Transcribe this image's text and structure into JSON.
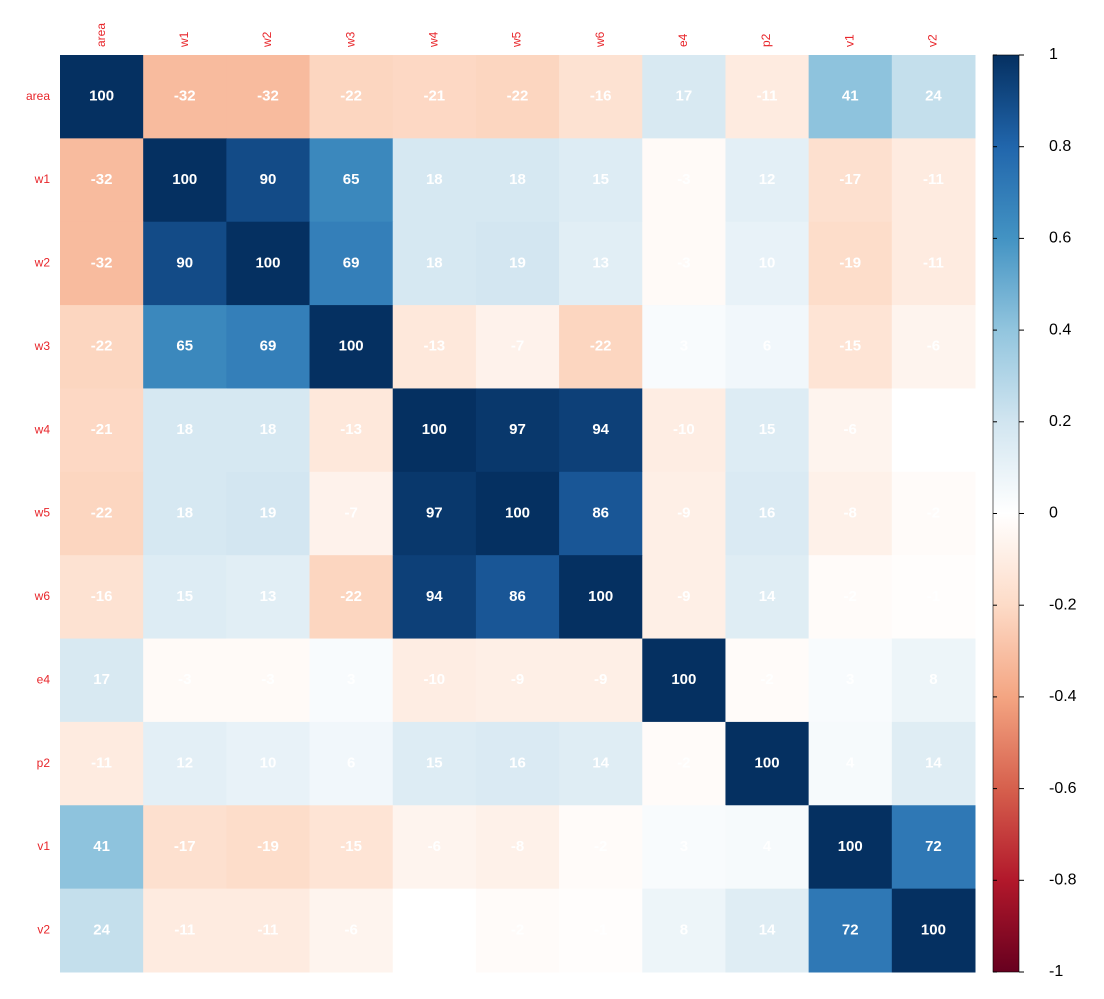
{
  "chart_data": {
    "type": "heatmap",
    "variables": [
      "area",
      "w1",
      "w2",
      "w3",
      "w4",
      "w5",
      "w6",
      "e4",
      "p2",
      "v1",
      "v2"
    ],
    "values": [
      [
        1.0,
        -0.32,
        -0.32,
        -0.22,
        -0.21,
        -0.22,
        -0.16,
        0.17,
        -0.11,
        0.41,
        0.24
      ],
      [
        -0.32,
        1.0,
        0.9,
        0.65,
        0.18,
        0.18,
        0.15,
        -0.03,
        0.12,
        -0.17,
        -0.11
      ],
      [
        -0.32,
        0.9,
        1.0,
        0.69,
        0.18,
        0.19,
        0.13,
        -0.03,
        0.1,
        -0.19,
        -0.11
      ],
      [
        -0.22,
        0.65,
        0.69,
        1.0,
        -0.13,
        -0.07,
        -0.22,
        0.03,
        0.06,
        -0.15,
        -0.06
      ],
      [
        -0.21,
        0.18,
        0.18,
        -0.13,
        1.0,
        0.97,
        0.94,
        -0.1,
        0.15,
        -0.06,
        0
      ],
      [
        -0.22,
        0.18,
        0.19,
        -0.07,
        0.97,
        1.0,
        0.86,
        -0.09,
        0.16,
        -0.08,
        -0.02
      ],
      [
        -0.16,
        0.15,
        0.13,
        -0.22,
        0.94,
        0.86,
        1.0,
        -0.09,
        0.14,
        -0.02,
        -0.01
      ],
      [
        0.17,
        -0.03,
        -0.03,
        0.03,
        -0.1,
        -0.09,
        -0.09,
        1.0,
        -0.02,
        0.03,
        0.08
      ],
      [
        -0.11,
        0.12,
        0.1,
        0.06,
        0.15,
        0.16,
        0.14,
        -0.02,
        1.0,
        0.04,
        0.14
      ],
      [
        0.41,
        -0.17,
        -0.19,
        -0.15,
        -0.06,
        -0.08,
        -0.02,
        0.03,
        0.04,
        1.0,
        0.72
      ],
      [
        0.24,
        -0.11,
        -0.11,
        -0.06,
        0,
        -0.02,
        -0.01,
        0.08,
        0.14,
        0.72,
        1.0
      ]
    ],
    "value_labels": [
      [
        "100",
        "-32",
        "-32",
        "-22",
        "-21",
        "-22",
        "-16",
        "17",
        "-11",
        "41",
        "24"
      ],
      [
        "-32",
        "100",
        "90",
        "65",
        "18",
        "18",
        "15",
        "-3",
        "12",
        "-17",
        "-11"
      ],
      [
        "-32",
        "90",
        "100",
        "69",
        "18",
        "19",
        "13",
        "-3",
        "10",
        "-19",
        "-11"
      ],
      [
        "-22",
        "65",
        "69",
        "100",
        "-13",
        "-7",
        "-22",
        "3",
        "6",
        "-15",
        "-6"
      ],
      [
        "-21",
        "18",
        "18",
        "-13",
        "100",
        "97",
        "94",
        "-10",
        "15",
        "-6",
        "0"
      ],
      [
        "-22",
        "18",
        "19",
        "-7",
        "97",
        "100",
        "86",
        "-9",
        "16",
        "-8",
        "-2"
      ],
      [
        "-16",
        "15",
        "13",
        "-22",
        "94",
        "86",
        "100",
        "-9",
        "14",
        "-2",
        "-1"
      ],
      [
        "17",
        "-3",
        "-3",
        "3",
        "-10",
        "-9",
        "-9",
        "100",
        "-2",
        "3",
        "8"
      ],
      [
        "-11",
        "12",
        "10",
        "6",
        "15",
        "16",
        "14",
        "-2",
        "100",
        "4",
        "14"
      ],
      [
        "41",
        "-17",
        "-19",
        "-15",
        "-6",
        "-8",
        "-2",
        "3",
        "4",
        "100",
        "72"
      ],
      [
        "24",
        "-11",
        "-11",
        "-6",
        "0",
        "-2",
        "-1",
        "8",
        "14",
        "72",
        "100"
      ]
    ],
    "clim": [
      -1,
      1
    ],
    "cticks": [
      -1,
      -0.8,
      -0.6,
      -0.4,
      -0.2,
      0,
      0.2,
      0.4,
      0.6,
      0.8,
      1
    ],
    "colors": [
      "#67001f",
      "#b2182b",
      "#d6604d",
      "#f4a582",
      "#fddbc7",
      "#ffffff",
      "#d1e5f0",
      "#92c5de",
      "#4393c3",
      "#2166ac",
      "#053061"
    ]
  }
}
